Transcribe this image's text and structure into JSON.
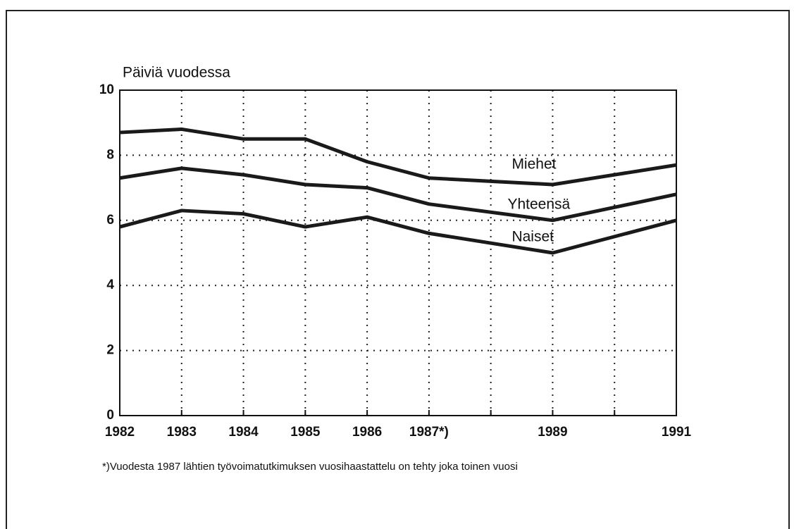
{
  "chart_data": {
    "type": "line",
    "ylabel": "Päiviä vuodessa",
    "footnote": "*)Vuodesta 1987 lähtien työvoimatutkimuksen vuosihaastattelu on tehty joka toinen vuosi",
    "x": [
      1982,
      1983,
      1984,
      1985,
      1986,
      1987,
      1989,
      1991
    ],
    "series": [
      {
        "name": "Miehet",
        "color": "#1a1a1a",
        "values": [
          8.7,
          8.8,
          8.5,
          8.5,
          7.8,
          7.3,
          7.1,
          7.7
        ]
      },
      {
        "name": "Yhteensä",
        "color": "#1a1a1a",
        "values": [
          7.3,
          7.6,
          7.4,
          7.1,
          7.0,
          6.5,
          6.0,
          6.8
        ]
      },
      {
        "name": "Naiset",
        "color": "#1a1a1a",
        "values": [
          5.8,
          6.3,
          6.2,
          5.8,
          6.1,
          5.6,
          5.0,
          6.0
        ]
      }
    ],
    "xlim": [
      1982,
      1991
    ],
    "xticks": [
      1982,
      1983,
      1984,
      1985,
      1986,
      {
        "value": 1987,
        "label": "1987*)"
      },
      {
        "value": 1988,
        "label": null
      },
      1989,
      {
        "value": 1990,
        "label": null
      },
      1991
    ],
    "ylim": [
      0,
      10
    ],
    "yticks": [
      0,
      2,
      4,
      6,
      8,
      10
    ],
    "grid": true
  }
}
